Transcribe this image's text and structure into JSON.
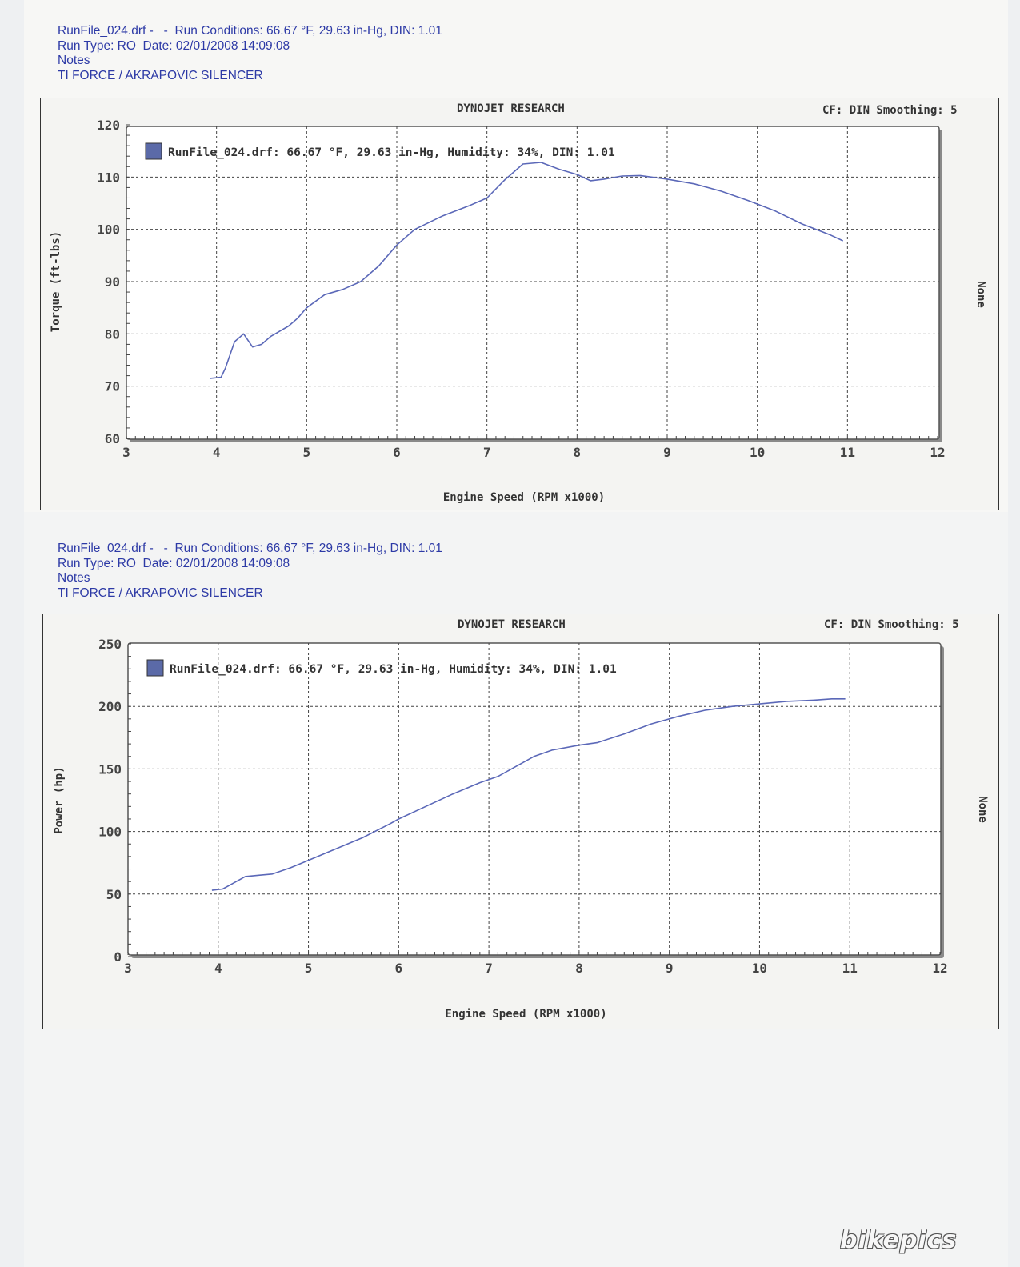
{
  "sheets": [
    {
      "header": [
        "RunFile_024.drf -   -  Run Conditions: 66.67 °F, 29.63 in-Hg, DIN: 1.01",
        "Run Type: RO  Date: 02/01/2008 14:09:08",
        "Notes",
        "TI FORCE / AKRAPOVIC SILENCER"
      ],
      "title": "DYNOJET RESEARCH",
      "cf": "CF: DIN  Smoothing: 5",
      "right_label": "None"
    },
    {
      "header": [
        "RunFile_024.drf -   -  Run Conditions: 66.67 °F, 29.63 in-Hg, DIN: 1.01",
        "Run Type: RO  Date: 02/01/2008 14:09:08",
        "Notes",
        "TI FORCE / AKRAPOVIC SILENCER"
      ],
      "title": "DYNOJET RESEARCH",
      "cf": "CF: DIN  Smoothing: 5",
      "right_label": "None"
    }
  ],
  "logo": "bikepics",
  "chart_data": [
    {
      "type": "line",
      "xlabel": "Engine Speed (RPM x1000)",
      "ylabel": "Torque (ft-lbs)",
      "xlim": [
        3,
        12
      ],
      "ylim": [
        60,
        120
      ],
      "xticks": [
        3,
        4,
        5,
        6,
        7,
        8,
        9,
        10,
        11,
        12
      ],
      "yticks": [
        60,
        70,
        80,
        90,
        100,
        110,
        120
      ],
      "grid": true,
      "legend": "top-left",
      "series": [
        {
          "name": "RunFile_024.drf: 66.67 °F, 29.63 in-Hg, Humidity: 34%, DIN: 1.01",
          "color": "#5b68b8",
          "x": [
            3.93,
            4.05,
            4.1,
            4.2,
            4.3,
            4.4,
            4.5,
            4.6,
            4.7,
            4.8,
            4.9,
            5.0,
            5.2,
            5.4,
            5.6,
            5.8,
            6.0,
            6.2,
            6.5,
            6.8,
            7.0,
            7.2,
            7.4,
            7.6,
            7.8,
            8.0,
            8.15,
            8.3,
            8.5,
            8.7,
            9.0,
            9.3,
            9.6,
            9.9,
            10.2,
            10.5,
            10.8,
            10.95
          ],
          "y": [
            71.5,
            71.7,
            73.5,
            78.5,
            80,
            77.5,
            78,
            79.5,
            80.5,
            81.5,
            83,
            85,
            87.5,
            88.5,
            90,
            93,
            97,
            100,
            102.5,
            104.5,
            106,
            109.5,
            112.5,
            112.8,
            111.5,
            110.5,
            109.3,
            109.6,
            110.2,
            110.3,
            109.6,
            108.7,
            107.3,
            105.5,
            103.5,
            101,
            99,
            97.8
          ]
        }
      ]
    },
    {
      "type": "line",
      "xlabel": "Engine Speed (RPM x1000)",
      "ylabel": "Power (hp)",
      "xlim": [
        3,
        12
      ],
      "ylim": [
        0,
        250
      ],
      "xticks": [
        3,
        4,
        5,
        6,
        7,
        8,
        9,
        10,
        11,
        12
      ],
      "yticks": [
        0,
        50,
        100,
        150,
        200,
        250
      ],
      "grid": true,
      "legend": "top-left",
      "series": [
        {
          "name": "RunFile_024.drf: 66.67 °F, 29.63 in-Hg, Humidity: 34%, DIN: 1.01",
          "color": "#5b68b8",
          "x": [
            3.93,
            4.05,
            4.15,
            4.3,
            4.45,
            4.6,
            4.8,
            5.0,
            5.3,
            5.6,
            5.9,
            6.0,
            6.3,
            6.6,
            6.9,
            7.1,
            7.3,
            7.5,
            7.7,
            8.0,
            8.2,
            8.5,
            8.8,
            9.1,
            9.4,
            9.7,
            10.0,
            10.3,
            10.6,
            10.8,
            10.95
          ],
          "y": [
            53,
            54,
            58,
            64,
            65,
            66,
            71,
            77,
            86,
            95,
            106,
            110,
            120,
            130,
            139,
            144,
            152,
            160,
            165,
            169,
            171,
            178,
            186,
            192,
            197,
            200,
            202,
            204,
            205,
            206,
            206
          ]
        }
      ]
    }
  ]
}
